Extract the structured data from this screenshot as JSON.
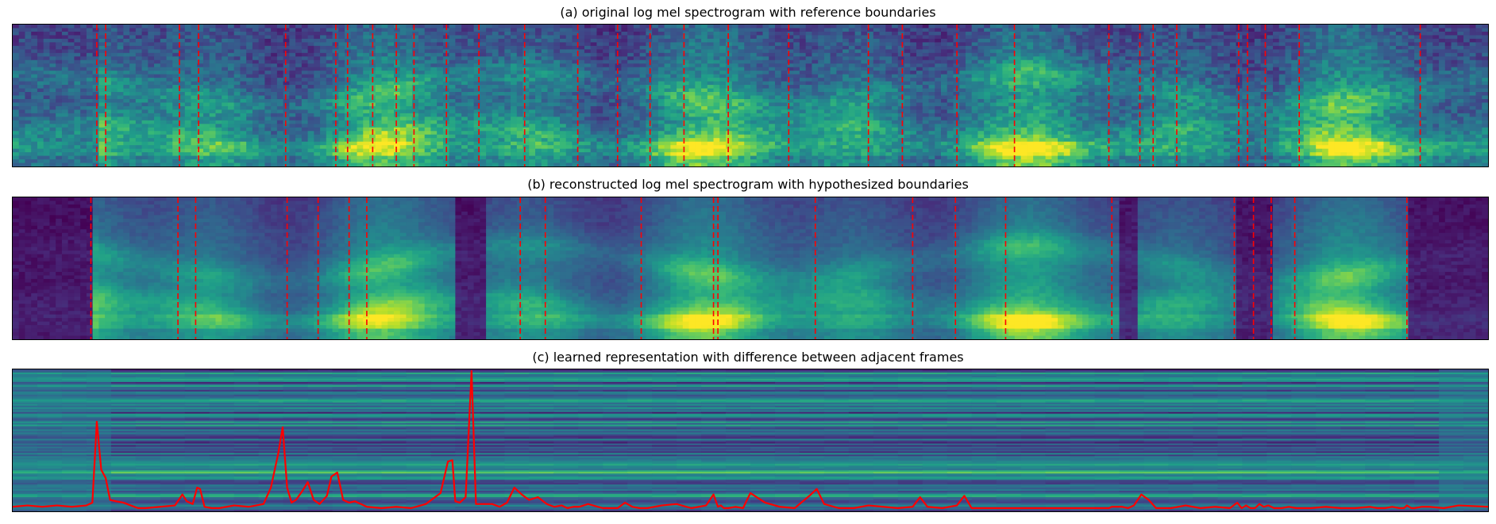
{
  "chart_data": [
    {
      "type": "heatmap",
      "title": "(a) original log mel spectrogram with reference boundaries",
      "colormap": "viridis",
      "boundary_color": "#ff0000",
      "x_range": [
        0,
        1000
      ],
      "boundaries": [
        57,
        63,
        113,
        126,
        185,
        219,
        227,
        244,
        260,
        272,
        294,
        316,
        347,
        383,
        410,
        432,
        455,
        485,
        526,
        580,
        603,
        640,
        679,
        743,
        764,
        773,
        789,
        831,
        837,
        849,
        872,
        954
      ]
    },
    {
      "type": "heatmap",
      "title": "(b) reconstructed log mel spectrogram with hypothesized boundaries",
      "colormap": "viridis",
      "boundary_color": "#ff0000",
      "x_range": [
        0,
        1000
      ],
      "boundaries": [
        53,
        112,
        124,
        186,
        207,
        228,
        240,
        344,
        361,
        426,
        475,
        478,
        544,
        610,
        639,
        673,
        745,
        828,
        841,
        853,
        869,
        945
      ]
    },
    {
      "type": "line",
      "title": "(c) learned representation with difference between adjacent frames",
      "background": "learned representation heatmap (viridis)",
      "line_color": "#ff0000",
      "x_range": [
        0,
        1000
      ],
      "y_range": [
        0,
        1
      ],
      "x": [
        0,
        10,
        20,
        30,
        40,
        50,
        54,
        57,
        60,
        63,
        66,
        70,
        75,
        80,
        85,
        90,
        100,
        110,
        115,
        118,
        122,
        125,
        127,
        130,
        135,
        140,
        150,
        160,
        170,
        175,
        180,
        183,
        186,
        189,
        192,
        196,
        200,
        204,
        208,
        213,
        216,
        220,
        224,
        228,
        232,
        236,
        240,
        250,
        260,
        270,
        280,
        290,
        295,
        298,
        300,
        303,
        307,
        311,
        314,
        316,
        318,
        320,
        325,
        330,
        335,
        340,
        345,
        350,
        356,
        362,
        367,
        372,
        376,
        380,
        384,
        390,
        400,
        410,
        415,
        420,
        425,
        430,
        440,
        450,
        460,
        470,
        475,
        478,
        480,
        482,
        485,
        490,
        495,
        500,
        510,
        520,
        530,
        540,
        545,
        550,
        560,
        570,
        580,
        590,
        600,
        610,
        615,
        620,
        630,
        640,
        645,
        650,
        660,
        665,
        670,
        680,
        690,
        700,
        710,
        720,
        730,
        735,
        740,
        743,
        745,
        748,
        752,
        756,
        760,
        765,
        770,
        775,
        785,
        795,
        805,
        815,
        825,
        830,
        833,
        836,
        839,
        842,
        845,
        848,
        851,
        855,
        860,
        865,
        870,
        880,
        890,
        900,
        910,
        920,
        925,
        930,
        935,
        940,
        943,
        945,
        948,
        950,
        955,
        960,
        970,
        980,
        1000
      ],
      "y": [
        0.01,
        0.02,
        0.01,
        0.02,
        0.01,
        0.02,
        0.04,
        0.63,
        0.28,
        0.22,
        0.06,
        0.05,
        0.04,
        0.02,
        0.0,
        0.0,
        0.01,
        0.02,
        0.1,
        0.05,
        0.03,
        0.15,
        0.14,
        0.01,
        0.0,
        0.0,
        0.02,
        0.01,
        0.03,
        0.15,
        0.4,
        0.59,
        0.15,
        0.04,
        0.06,
        0.12,
        0.19,
        0.06,
        0.03,
        0.09,
        0.23,
        0.26,
        0.06,
        0.04,
        0.05,
        0.03,
        0.01,
        0.0,
        0.01,
        0.0,
        0.03,
        0.11,
        0.34,
        0.35,
        0.05,
        0.04,
        0.08,
        1.0,
        0.03,
        0.03,
        0.03,
        0.03,
        0.03,
        0.01,
        0.04,
        0.15,
        0.1,
        0.06,
        0.08,
        0.03,
        0.01,
        0.02,
        0.0,
        0.01,
        0.01,
        0.03,
        0.0,
        0.0,
        0.04,
        0.01,
        0.0,
        0.0,
        0.02,
        0.03,
        0.0,
        0.02,
        0.1,
        0.01,
        0.02,
        0.0,
        0.0,
        0.01,
        0.0,
        0.11,
        0.04,
        0.01,
        0.0,
        0.09,
        0.14,
        0.03,
        0.0,
        0.0,
        0.02,
        0.01,
        0.0,
        0.01,
        0.08,
        0.01,
        0.0,
        0.02,
        0.09,
        0.0,
        0.0,
        0.0,
        0.0,
        0.0,
        0.0,
        0.0,
        0.0,
        0.0,
        0.0,
        0.0,
        0.0,
        0.0,
        0.01,
        0.01,
        0.01,
        0.0,
        0.02,
        0.1,
        0.06,
        0.0,
        0.0,
        0.02,
        0.0,
        0.01,
        0.0,
        0.04,
        0.0,
        0.02,
        0.0,
        0.0,
        0.03,
        0.01,
        0.02,
        0.0,
        0.0,
        0.01,
        0.0,
        0.0,
        0.01,
        0.0,
        0.0,
        0.01,
        0.0,
        0.0,
        0.01,
        0.0,
        0.0,
        0.02,
        0.0,
        0.0,
        0.01,
        0.01,
        0.0,
        0.02,
        0.01
      ]
    }
  ]
}
